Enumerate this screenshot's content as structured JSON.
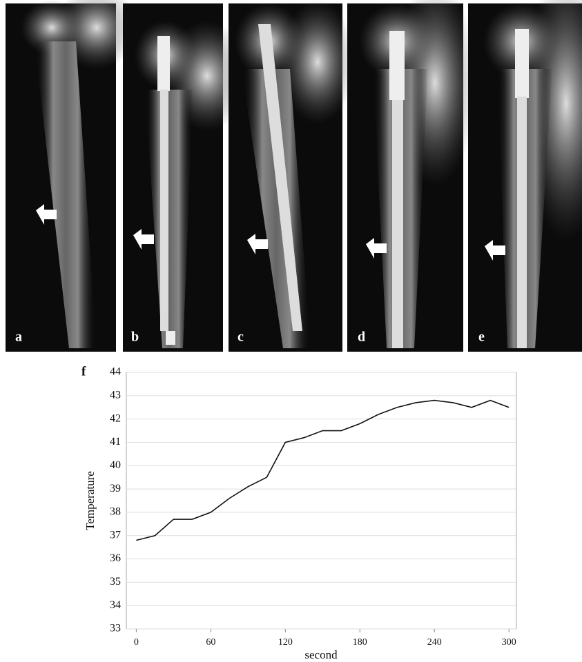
{
  "panels": [
    {
      "label": "a"
    },
    {
      "label": "b"
    },
    {
      "label": "c"
    },
    {
      "label": "d"
    },
    {
      "label": "e"
    }
  ],
  "chart_data": {
    "type": "line",
    "panel_label": "f",
    "xlabel": "second",
    "ylabel": "Temperature",
    "x": [
      0,
      15,
      30,
      45,
      60,
      75,
      90,
      105,
      120,
      135,
      150,
      165,
      180,
      195,
      210,
      225,
      240,
      255,
      270,
      285,
      300
    ],
    "y": [
      36.8,
      37.0,
      37.7,
      37.7,
      38.0,
      38.6,
      39.1,
      39.5,
      41.0,
      41.2,
      41.5,
      41.5,
      41.8,
      42.2,
      42.5,
      42.7,
      42.8,
      42.7,
      42.5,
      42.8,
      42.5
    ],
    "color": "#111111",
    "xlim": [
      -8,
      306
    ],
    "ylim": [
      33,
      44
    ],
    "xticks": [
      0,
      60,
      120,
      180,
      240,
      300
    ],
    "yticks": [
      33,
      34,
      35,
      36,
      37,
      38,
      39,
      40,
      41,
      42,
      43,
      44
    ],
    "grid": true
  }
}
